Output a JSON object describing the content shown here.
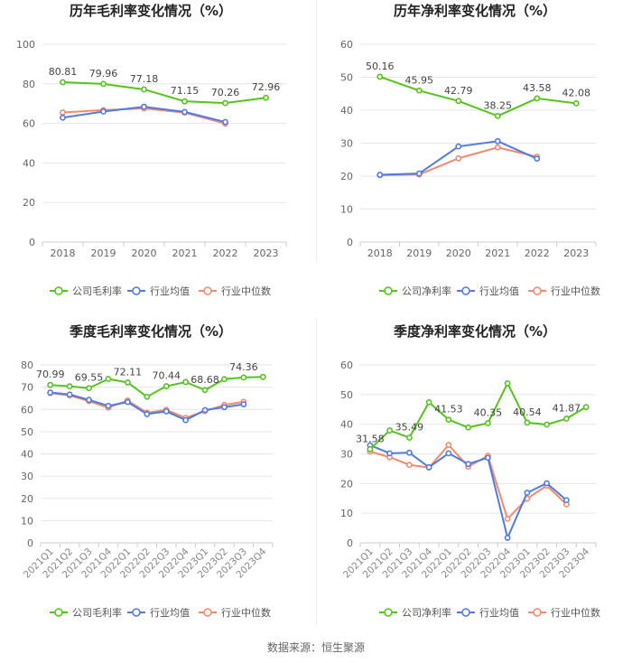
{
  "footer": {
    "source": "数据来源：恒生聚源"
  },
  "colors": {
    "company": "#52c41a",
    "avg": "#4f7be3",
    "median": "#f48a6c",
    "grid": "#e6e6e6",
    "axis": "#cccccc",
    "text": "#666666",
    "title": "#222222"
  },
  "legend": {
    "company_gross": "公司毛利率",
    "company_net": "公司净利率",
    "avg": "行业均值",
    "median": "行业中位数"
  },
  "chart_data": [
    {
      "type": "line",
      "title": "历年毛利率变化情况（%）",
      "categories": [
        "2018",
        "2019",
        "2020",
        "2021",
        "2022",
        "2023"
      ],
      "ylim": [
        0,
        100
      ],
      "yticks": [
        0,
        20,
        40,
        60,
        80,
        100
      ],
      "series": [
        {
          "name": "公司毛利率",
          "key": "company",
          "values": [
            80.81,
            79.96,
            77.18,
            71.15,
            70.26,
            72.96
          ]
        },
        {
          "name": "行业均值",
          "key": "avg",
          "values": [
            62.9,
            66.0,
            68.4,
            65.8,
            60.7,
            null
          ]
        },
        {
          "name": "行业中位数",
          "key": "median",
          "values": [
            65.5,
            66.7,
            67.6,
            65.4,
            59.9,
            null
          ]
        }
      ],
      "labels": [
        {
          "index": 0,
          "text": "80.81"
        },
        {
          "index": 1,
          "text": "79.96"
        },
        {
          "index": 2,
          "text": "77.18"
        },
        {
          "index": 3,
          "text": "71.15"
        },
        {
          "index": 4,
          "text": "70.26"
        },
        {
          "index": 5,
          "text": "72.96"
        }
      ],
      "rotateTicks": false
    },
    {
      "type": "line",
      "title": "历年净利率变化情况（%）",
      "categories": [
        "2018",
        "2019",
        "2020",
        "2021",
        "2022",
        "2023"
      ],
      "ylim": [
        0,
        60
      ],
      "yticks": [
        0,
        10,
        20,
        30,
        40,
        50,
        60
      ],
      "series": [
        {
          "name": "公司净利率",
          "key": "company",
          "values": [
            50.16,
            45.95,
            42.79,
            38.25,
            43.58,
            42.08
          ]
        },
        {
          "name": "行业均值",
          "key": "avg",
          "values": [
            20.4,
            20.8,
            29.0,
            30.6,
            25.3,
            null
          ]
        },
        {
          "name": "行业中位数",
          "key": "median",
          "values": [
            20.3,
            20.5,
            25.4,
            28.7,
            25.9,
            null
          ]
        }
      ],
      "labels": [
        {
          "index": 0,
          "text": "50.16"
        },
        {
          "index": 1,
          "text": "45.95"
        },
        {
          "index": 2,
          "text": "42.79"
        },
        {
          "index": 3,
          "text": "38.25"
        },
        {
          "index": 4,
          "text": "43.58"
        },
        {
          "index": 5,
          "text": "42.08"
        }
      ],
      "rotateTicks": false
    },
    {
      "type": "line",
      "title": "季度毛利率变化情况（%）",
      "categories": [
        "2021Q1",
        "2021Q2",
        "2021Q3",
        "2021Q4",
        "2022Q1",
        "2022Q2",
        "2022Q3",
        "2022Q4",
        "2023Q1",
        "2023Q2",
        "2023Q3",
        "2023Q4"
      ],
      "ylim": [
        0,
        80
      ],
      "yticks": [
        0,
        10,
        20,
        30,
        40,
        50,
        60,
        70,
        80
      ],
      "series": [
        {
          "name": "公司毛利率",
          "key": "company",
          "values": [
            70.99,
            70.4,
            69.55,
            73.7,
            72.11,
            65.7,
            70.44,
            72.3,
            68.68,
            73.6,
            74.36,
            74.6
          ]
        },
        {
          "name": "行业均值",
          "key": "avg",
          "values": [
            67.6,
            66.7,
            64.3,
            61.6,
            63.3,
            57.9,
            59.1,
            55.2,
            59.7,
            61.0,
            62.3,
            null
          ]
        },
        {
          "name": "行业中位数",
          "key": "median",
          "values": [
            67.3,
            66.3,
            63.7,
            60.8,
            64.0,
            58.5,
            59.8,
            56.2,
            59.2,
            62.0,
            63.4,
            null
          ]
        }
      ],
      "labels": [
        {
          "index": 0,
          "text": "70.99"
        },
        {
          "index": 2,
          "text": "69.55"
        },
        {
          "index": 4,
          "text": "72.11"
        },
        {
          "index": 6,
          "text": "70.44"
        },
        {
          "index": 8,
          "text": "68.68"
        },
        {
          "index": 10,
          "text": "74.36"
        }
      ],
      "rotateTicks": true
    },
    {
      "type": "line",
      "title": "季度净利率变化情况（%）",
      "categories": [
        "2021Q1",
        "2021Q2",
        "2021Q3",
        "2021Q4",
        "2022Q1",
        "2022Q2",
        "2022Q3",
        "2022Q4",
        "2023Q1",
        "2023Q2",
        "2023Q3",
        "2023Q4"
      ],
      "ylim": [
        0,
        60
      ],
      "yticks": [
        0,
        10,
        20,
        30,
        40,
        50,
        60
      ],
      "series": [
        {
          "name": "公司净利率",
          "key": "company",
          "values": [
            31.58,
            37.9,
            35.49,
            47.4,
            41.53,
            38.9,
            40.35,
            53.8,
            40.54,
            39.9,
            41.87,
            45.8
          ]
        },
        {
          "name": "行业均值",
          "key": "avg",
          "values": [
            32.9,
            30.2,
            30.4,
            25.5,
            30.2,
            26.6,
            28.7,
            1.7,
            16.9,
            20.1,
            14.4,
            null
          ]
        },
        {
          "name": "行业中位数",
          "key": "median",
          "values": [
            30.8,
            28.9,
            26.3,
            25.4,
            33.0,
            25.7,
            29.4,
            8.1,
            14.9,
            19.3,
            13.0,
            null
          ]
        }
      ],
      "labels": [
        {
          "index": 0,
          "text": "31.58"
        },
        {
          "index": 2,
          "text": "35.49"
        },
        {
          "index": 4,
          "text": "41.53"
        },
        {
          "index": 6,
          "text": "40.35"
        },
        {
          "index": 8,
          "text": "40.54"
        },
        {
          "index": 10,
          "text": "41.87"
        }
      ],
      "rotateTicks": true
    }
  ]
}
